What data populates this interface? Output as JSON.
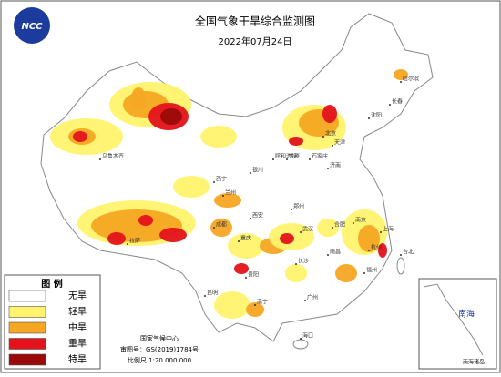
{
  "header": {
    "title": "全国气象干旱综合监测图",
    "date": "2022年07月24日",
    "logo": "NCC"
  },
  "legend": {
    "title": "图 例",
    "items": [
      {
        "label": "无旱",
        "color": "#ffffff"
      },
      {
        "label": "轻旱",
        "color": "#fff36b"
      },
      {
        "label": "中旱",
        "color": "#f5a623"
      },
      {
        "label": "重旱",
        "color": "#e3121b"
      },
      {
        "label": "特旱",
        "color": "#9b0a0a"
      }
    ]
  },
  "footer": {
    "agency": "国家气候中心",
    "approval": "审图号：GS(2019)1784号",
    "scale": "比例尺 1:20 000 000"
  },
  "inset": {
    "label": "南海",
    "caption": "南海诸岛"
  },
  "cities": [
    "乌鲁木齐",
    "拉萨",
    "西宁",
    "兰州",
    "银川",
    "呼和浩特",
    "北京",
    "天津",
    "石家庄",
    "太原",
    "济南",
    "沈阳",
    "长春",
    "哈尔滨",
    "西安",
    "郑州",
    "成都",
    "重庆",
    "武汉",
    "合肥",
    "南京",
    "上海",
    "杭州",
    "长沙",
    "南昌",
    "福州",
    "贵阳",
    "昆明",
    "南宁",
    "广州",
    "台北",
    "海口"
  ]
}
